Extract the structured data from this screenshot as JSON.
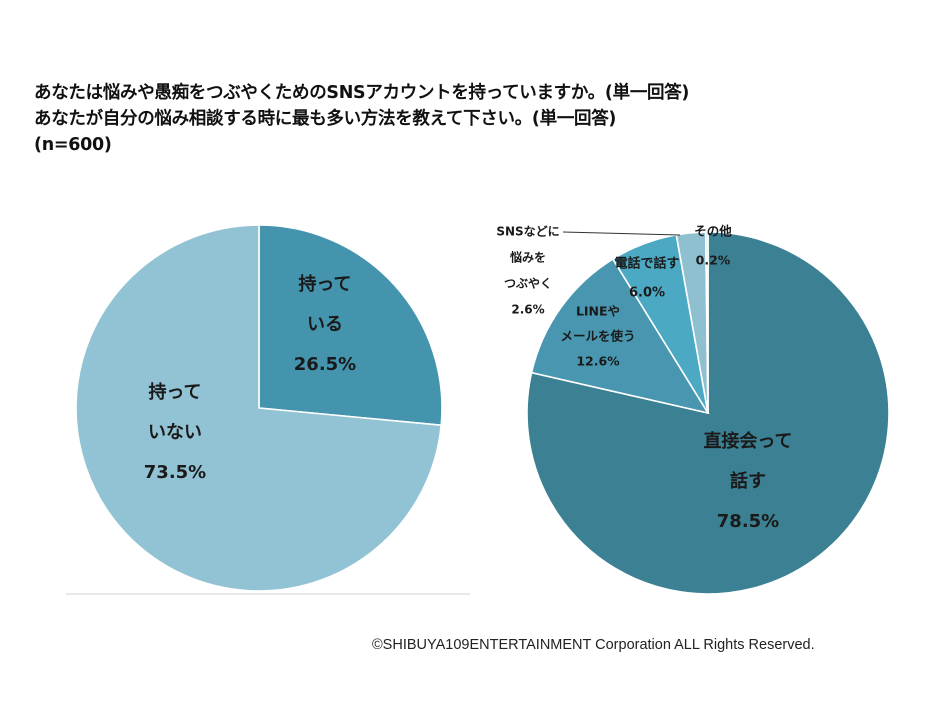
{
  "title": {
    "line1": "あなたは悩みや愚痴をつぶやくためのSNSアカウントを持っていますか。(単一回答)",
    "line2": "あなたが自分の悩み相談する時に最も多い方法を教えて下さい。(単一回答)",
    "line3": "(n=600)"
  },
  "copyright": "©SHIBUYA109ENTERTAINMENT Corporation  ALL Rights Reserved.",
  "chart_data": [
    {
      "type": "pie",
      "slices": [
        {
          "label_lines": [
            "持って",
            "いる"
          ],
          "value": 26.5,
          "value_label": "26.5%",
          "color": "#4494ae"
        },
        {
          "label_lines": [
            "持って",
            "いない"
          ],
          "value": 73.5,
          "value_label": "73.5%",
          "color": "#92c3d4"
        }
      ]
    },
    {
      "type": "pie",
      "slices": [
        {
          "label_lines": [
            "直接会って",
            "話す"
          ],
          "value": 78.5,
          "value_label": "78.5%",
          "color": "#3c8094"
        },
        {
          "label_lines": [
            "LINEや",
            "メールを使う"
          ],
          "value": 12.6,
          "value_label": "12.6%",
          "color": "#4896af"
        },
        {
          "label_lines": [
            "電話で話す"
          ],
          "value": 6.0,
          "value_label": "6.0%",
          "color": "#4ba9c4"
        },
        {
          "label_lines": [
            "SNSなどに",
            "悩みを",
            "つぶやく"
          ],
          "value": 2.6,
          "value_label": "2.6%",
          "color": "#8fc0cf"
        },
        {
          "label_lines": [
            "その他"
          ],
          "value": 0.2,
          "value_label": "0.2%",
          "color": "#b6d6e0"
        }
      ]
    }
  ]
}
